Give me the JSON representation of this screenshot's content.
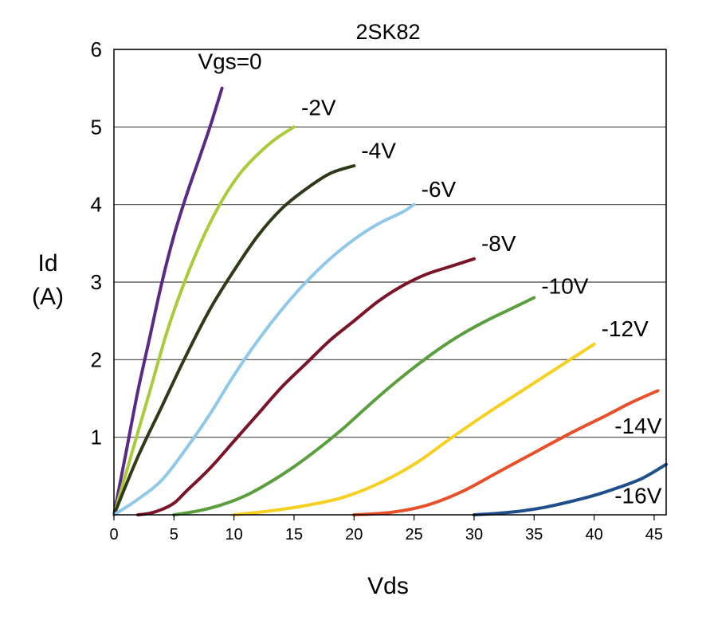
{
  "chart_data": {
    "type": "line",
    "title": "2SK82",
    "xlabel": "Vds",
    "ylabel_line1": "Id",
    "ylabel_line2": "(A)",
    "xlim": [
      0,
      46
    ],
    "ylim": [
      0,
      6
    ],
    "x_ticks": [
      0,
      5,
      10,
      15,
      20,
      25,
      30,
      35,
      40,
      45
    ],
    "y_ticks": [
      1,
      2,
      3,
      4,
      5,
      6
    ],
    "grid": "horizontal",
    "series": [
      {
        "name": "Vgs=0",
        "color": "#5b2a86",
        "points": [
          [
            0,
            0
          ],
          [
            1,
            0.8
          ],
          [
            2,
            1.6
          ],
          [
            3,
            2.3
          ],
          [
            4,
            3.0
          ],
          [
            5,
            3.6
          ],
          [
            6,
            4.1
          ],
          [
            7,
            4.55
          ],
          [
            8,
            5.0
          ],
          [
            9,
            5.5
          ]
        ]
      },
      {
        "name": "-2V",
        "color": "#a9cb3a",
        "points": [
          [
            0,
            0
          ],
          [
            1.5,
            0.8
          ],
          [
            3,
            1.6
          ],
          [
            4.5,
            2.4
          ],
          [
            6,
            3.05
          ],
          [
            7.5,
            3.6
          ],
          [
            9,
            4.05
          ],
          [
            10.5,
            4.4
          ],
          [
            12,
            4.65
          ],
          [
            13.5,
            4.85
          ],
          [
            15,
            5.0
          ]
        ]
      },
      {
        "name": "-4V",
        "color": "#2e3a18",
        "points": [
          [
            0,
            0
          ],
          [
            2,
            0.75
          ],
          [
            4,
            1.4
          ],
          [
            6,
            2.05
          ],
          [
            8,
            2.65
          ],
          [
            10,
            3.15
          ],
          [
            12,
            3.6
          ],
          [
            14,
            3.95
          ],
          [
            16,
            4.2
          ],
          [
            18,
            4.4
          ],
          [
            20,
            4.5
          ]
        ]
      },
      {
        "name": "-6V",
        "color": "#8fc8e8",
        "points": [
          [
            0,
            0
          ],
          [
            2,
            0.2
          ],
          [
            4,
            0.45
          ],
          [
            6,
            0.85
          ],
          [
            8,
            1.3
          ],
          [
            10,
            1.8
          ],
          [
            12,
            2.25
          ],
          [
            14,
            2.65
          ],
          [
            16,
            3.0
          ],
          [
            18,
            3.3
          ],
          [
            20,
            3.55
          ],
          [
            22,
            3.75
          ],
          [
            24,
            3.9
          ],
          [
            25,
            4.0
          ]
        ]
      },
      {
        "name": "-8V",
        "color": "#7a1428",
        "points": [
          [
            2,
            0
          ],
          [
            3,
            0.02
          ],
          [
            4,
            0.07
          ],
          [
            5,
            0.15
          ],
          [
            6,
            0.3
          ],
          [
            8,
            0.6
          ],
          [
            10,
            0.95
          ],
          [
            12,
            1.3
          ],
          [
            14,
            1.65
          ],
          [
            16,
            1.95
          ],
          [
            18,
            2.25
          ],
          [
            20,
            2.5
          ],
          [
            22,
            2.75
          ],
          [
            24,
            2.95
          ],
          [
            26,
            3.1
          ],
          [
            28,
            3.2
          ],
          [
            30,
            3.3
          ]
        ]
      },
      {
        "name": "-10V",
        "color": "#5a9e3e",
        "points": [
          [
            5,
            0
          ],
          [
            7,
            0.05
          ],
          [
            9,
            0.13
          ],
          [
            11,
            0.25
          ],
          [
            13,
            0.42
          ],
          [
            15,
            0.62
          ],
          [
            17,
            0.85
          ],
          [
            19,
            1.1
          ],
          [
            21,
            1.38
          ],
          [
            23,
            1.65
          ],
          [
            25,
            1.9
          ],
          [
            27,
            2.13
          ],
          [
            29,
            2.33
          ],
          [
            31,
            2.5
          ],
          [
            33,
            2.65
          ],
          [
            35,
            2.8
          ]
        ]
      },
      {
        "name": "-12V",
        "color": "#f5d020",
        "points": [
          [
            10,
            0
          ],
          [
            13,
            0.05
          ],
          [
            16,
            0.12
          ],
          [
            19,
            0.22
          ],
          [
            22,
            0.4
          ],
          [
            25,
            0.65
          ],
          [
            28,
            0.98
          ],
          [
            31,
            1.3
          ],
          [
            34,
            1.6
          ],
          [
            37,
            1.9
          ],
          [
            40,
            2.2
          ]
        ]
      },
      {
        "name": "-14V",
        "color": "#e8502a",
        "points": [
          [
            20,
            0
          ],
          [
            23,
            0.03
          ],
          [
            26,
            0.12
          ],
          [
            29,
            0.3
          ],
          [
            32,
            0.55
          ],
          [
            35,
            0.8
          ],
          [
            38,
            1.05
          ],
          [
            41,
            1.28
          ],
          [
            43,
            1.44
          ],
          [
            45.3,
            1.6
          ]
        ]
      },
      {
        "name": "-16V",
        "color": "#1f4e8c",
        "points": [
          [
            30,
            0
          ],
          [
            32,
            0.02
          ],
          [
            34,
            0.05
          ],
          [
            36,
            0.1
          ],
          [
            38,
            0.17
          ],
          [
            40,
            0.25
          ],
          [
            42,
            0.35
          ],
          [
            44,
            0.47
          ],
          [
            46,
            0.65
          ]
        ]
      }
    ],
    "labels": [
      {
        "series": 0,
        "text": "Vgs=0",
        "x": 7,
        "y": 5.75
      },
      {
        "series": 1,
        "text": "-2V",
        "x": 15.6,
        "y": 5.15
      },
      {
        "series": 2,
        "text": "-4V",
        "x": 20.6,
        "y": 4.6
      },
      {
        "series": 3,
        "text": "-6V",
        "x": 25.6,
        "y": 4.1
      },
      {
        "series": 4,
        "text": "-8V",
        "x": 30.6,
        "y": 3.4
      },
      {
        "series": 5,
        "text": "-10V",
        "x": 35.6,
        "y": 2.85
      },
      {
        "series": 6,
        "text": "-12V",
        "x": 40.6,
        "y": 2.3
      },
      {
        "series": 7,
        "text": "-14V",
        "x": 41.7,
        "y": 1.05
      },
      {
        "series": 8,
        "text": "-16V",
        "x": 41.7,
        "y": 0.15
      }
    ]
  }
}
